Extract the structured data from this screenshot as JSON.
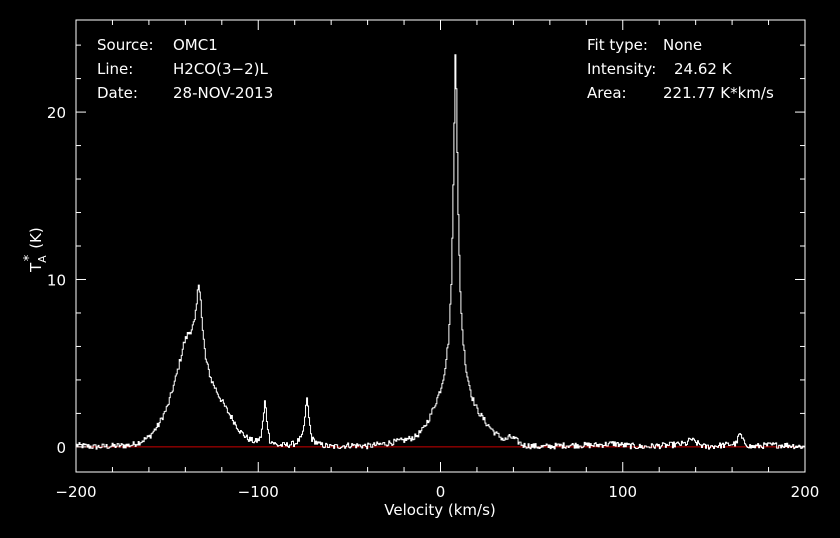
{
  "chart_data": {
    "type": "line",
    "xlabel": "Velocity (km/s)",
    "ylabel": "T",
    "ylabel_sub": "A",
    "ylabel_sup": "*",
    "ylabel_unit": "(K)",
    "xlim": [
      -200,
      200
    ],
    "ylim": [
      -1.5,
      25.5
    ],
    "x_ticks": [
      -200,
      -100,
      0,
      100,
      200
    ],
    "x_tick_labels": [
      "−200",
      "−100",
      "0",
      "100",
      "200"
    ],
    "y_ticks": [
      0,
      10,
      20
    ],
    "y_tick_labels": [
      "0",
      "10",
      "20"
    ],
    "grid": false,
    "info_left": [
      {
        "key": "Source:",
        "value": "OMC1"
      },
      {
        "key": "Line:",
        "value": "H2CO(3−2)L"
      },
      {
        "key": "Date:",
        "value": "28-NOV-2013"
      }
    ],
    "info_right": [
      {
        "key": "Fit type:",
        "value": "None"
      },
      {
        "key": "Intensity:",
        "value": "24.62 K"
      },
      {
        "key": "Area:",
        "value": "221.77 K*km/s"
      }
    ],
    "baseline": {
      "y": 0,
      "color": "#cc0000"
    },
    "series": [
      {
        "color": "#ffffff",
        "points": [
          [
            -200,
            0.1
          ],
          [
            -190,
            0.0
          ],
          [
            -180,
            0.05
          ],
          [
            -170,
            0.1
          ],
          [
            -165,
            0.3
          ],
          [
            -160,
            0.6
          ],
          [
            -155,
            1.3
          ],
          [
            -150,
            2.4
          ],
          [
            -146,
            3.9
          ],
          [
            -143,
            5.2
          ],
          [
            -141,
            6.2
          ],
          [
            -139,
            6.7
          ],
          [
            -137,
            7.0
          ],
          [
            -135,
            7.5
          ],
          [
            -134,
            8.5
          ],
          [
            -133,
            9.8
          ],
          [
            -132,
            9.3
          ],
          [
            -131,
            7.2
          ],
          [
            -129,
            5.2
          ],
          [
            -126,
            4.0
          ],
          [
            -122,
            3.1
          ],
          [
            -118,
            2.3
          ],
          [
            -114,
            1.6
          ],
          [
            -110,
            0.9
          ],
          [
            -106,
            0.5
          ],
          [
            -102,
            0.3
          ],
          [
            -99,
            0.5
          ],
          [
            -97.5,
            1.6
          ],
          [
            -96.5,
            2.8
          ],
          [
            -95.5,
            1.6
          ],
          [
            -94,
            0.4
          ],
          [
            -90,
            0.1
          ],
          [
            -85,
            0.1
          ],
          [
            -80,
            0.2
          ],
          [
            -76,
            0.6
          ],
          [
            -74.5,
            1.8
          ],
          [
            -73.5,
            3.0
          ],
          [
            -72.5,
            1.8
          ],
          [
            -71,
            0.5
          ],
          [
            -67,
            0.15
          ],
          [
            -60,
            0.0
          ],
          [
            -50,
            0.1
          ],
          [
            -40,
            0.05
          ],
          [
            -30,
            0.2
          ],
          [
            -20,
            0.4
          ],
          [
            -14,
            0.6
          ],
          [
            -10,
            1.0
          ],
          [
            -6,
            1.8
          ],
          [
            -3,
            2.6
          ],
          [
            0,
            3.5
          ],
          [
            2,
            4.5
          ],
          [
            4,
            6.2
          ],
          [
            5.5,
            9.0
          ],
          [
            6.5,
            13.5
          ],
          [
            7.3,
            19.0
          ],
          [
            8,
            24.5
          ],
          [
            8.7,
            20.0
          ],
          [
            9.5,
            14.0
          ],
          [
            10.5,
            9.5
          ],
          [
            12,
            6.5
          ],
          [
            14,
            4.5
          ],
          [
            17,
            3.0
          ],
          [
            20,
            2.2
          ],
          [
            25,
            1.4
          ],
          [
            30,
            0.8
          ],
          [
            35,
            0.4
          ],
          [
            38,
            0.6
          ],
          [
            40,
            0.5
          ],
          [
            45,
            0.1
          ],
          [
            55,
            0.0
          ],
          [
            70,
            0.1
          ],
          [
            85,
            0.1
          ],
          [
            95,
            0.2
          ],
          [
            100,
            0.1
          ],
          [
            110,
            0.0
          ],
          [
            125,
            0.1
          ],
          [
            135,
            0.2
          ],
          [
            137,
            0.5
          ],
          [
            139,
            0.3
          ],
          [
            145,
            0.0
          ],
          [
            155,
            0.1
          ],
          [
            162,
            0.2
          ],
          [
            164,
            0.8
          ],
          [
            166,
            0.3
          ],
          [
            170,
            0.0
          ],
          [
            180,
            0.1
          ],
          [
            190,
            0.1
          ],
          [
            200,
            0.0
          ]
        ]
      }
    ]
  }
}
